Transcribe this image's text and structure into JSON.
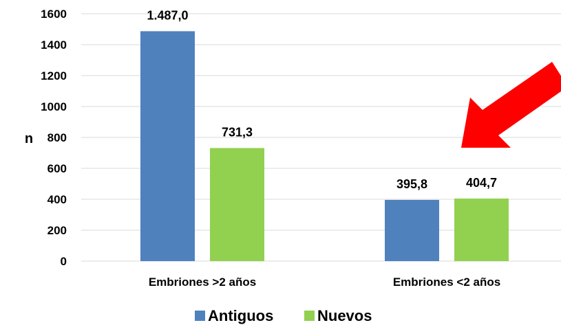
{
  "chart_data": {
    "type": "bar",
    "title": "",
    "xlabel": "",
    "ylabel": "n",
    "ylim": [
      0,
      1600
    ],
    "yticks": [
      "0",
      "200",
      "400",
      "600",
      "800",
      "1000",
      "1200",
      "1400",
      "1600"
    ],
    "categories": [
      "Embriones >2 años",
      "Embriones <2 años"
    ],
    "series": [
      {
        "name": "Antiguos",
        "color": "#4f81bd",
        "values": [
          1487.0,
          395.8
        ],
        "labels": [
          "1.487,0",
          "395,8"
        ]
      },
      {
        "name": "Nuevos",
        "color": "#92d050",
        "values": [
          731.3,
          404.7
        ],
        "labels": [
          "731,3",
          "404,7"
        ]
      }
    ],
    "grid": true,
    "legend_position": "bottom",
    "annotation": {
      "type": "arrow",
      "color": "#ff0000",
      "points_to": "Embriones <2 años"
    }
  }
}
